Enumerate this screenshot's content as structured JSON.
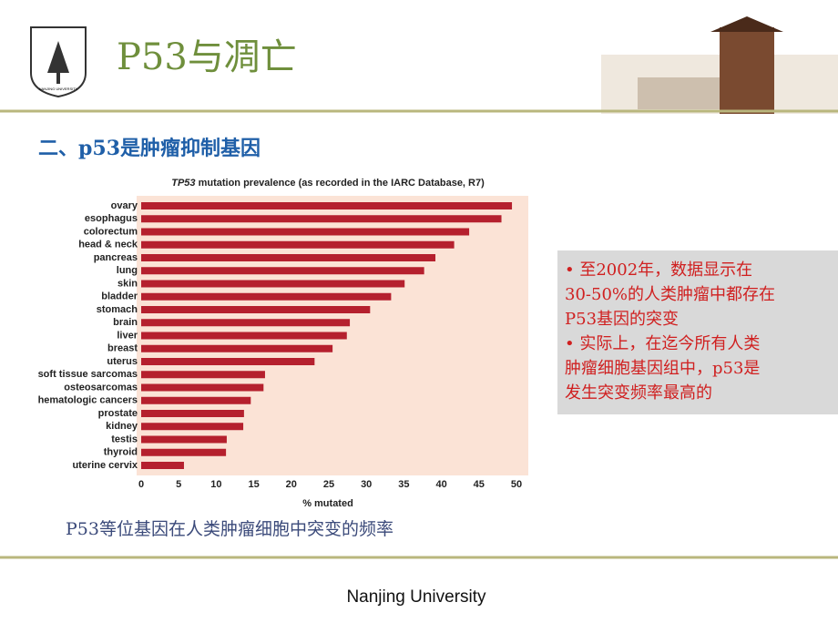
{
  "slide": {
    "title": "P53与凋亡",
    "subtitle": "二、p53是肿瘤抑制基因",
    "logo_text": "NANJING UNIVERSITY",
    "caption": "P53等位基因在人类肿瘤细胞中突变的频率",
    "note_lines": [
      "• 至2002年，数据显示在",
      "30-50%的人类肿瘤中都存在",
      "P53基因的突变",
      "• 实际上，在迄今所有人类",
      "肿瘤细胞基因组中，p53是",
      "发生突变频率最高的"
    ],
    "footer": "Nanjing University"
  },
  "chart_data": {
    "type": "hbar",
    "title_italic": "TP53",
    "title": " mutation prevalence (as recorded in the IARC Database, R7)",
    "categories": [
      "ovary",
      "esophagus",
      "colorectum",
      "head & neck",
      "pancreas",
      "lung",
      "skin",
      "bladder",
      "stomach",
      "brain",
      "liver",
      "breast",
      "uterus",
      "soft tissue sarcomas",
      "osteosarcomas",
      "hematologic cancers",
      "prostate",
      "kidney",
      "testis",
      "thyroid",
      "uterine cervix"
    ],
    "values": [
      49.4,
      48,
      43.7,
      41.7,
      39.2,
      37.7,
      35.1,
      33.3,
      30.5,
      27.8,
      27.4,
      25.5,
      23.1,
      16.5,
      16.3,
      14.6,
      13.7,
      13.6,
      11.4,
      11.3,
      5.7
    ],
    "color": "#b5202e",
    "xlim": [
      0,
      50
    ],
    "xticks": [
      0,
      5,
      10,
      15,
      20,
      25,
      30,
      35,
      40,
      45,
      50
    ],
    "xlabel": "% mutated",
    "grid": false
  }
}
